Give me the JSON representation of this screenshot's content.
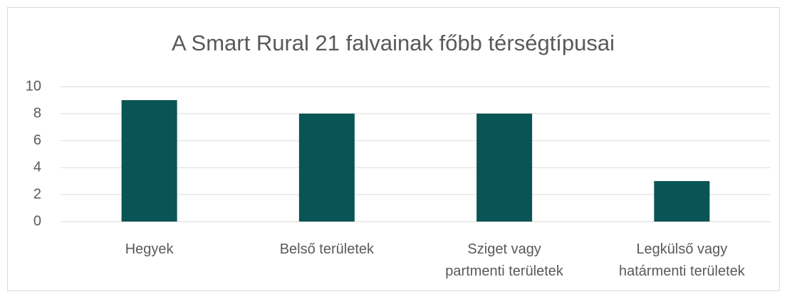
{
  "chart_data": {
    "type": "bar",
    "title": "A Smart Rural 21 falvainak főbb térségtípusai",
    "categories": [
      "Hegyek",
      "Belső területek",
      "Sziget vagy\npartmenti területek",
      "Legkülső vagy\nhatármenti területek"
    ],
    "values": [
      9,
      8,
      8,
      3
    ],
    "color": "#095555",
    "ylim": [
      0,
      10
    ],
    "yticks": [
      0,
      2,
      4,
      6,
      8,
      10
    ],
    "grid": true
  }
}
